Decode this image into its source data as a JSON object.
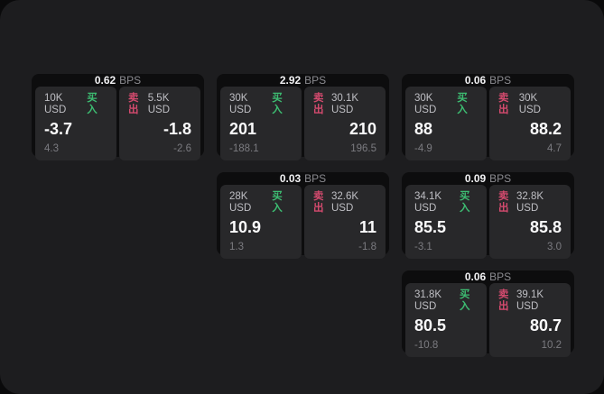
{
  "labels": {
    "bps_unit": "BPS",
    "buy": "买入",
    "sell": "卖出"
  },
  "colors": {
    "outer_background": "#0a0a0b",
    "surface": "#1d1d1f",
    "card_background": "#0d0d0e",
    "panel_background": "#28282a",
    "buy_green": "#3dbd72",
    "sell_red": "#d44a6e",
    "price_text": "#fbfbfc",
    "muted_text": "#7b7b80"
  },
  "cards": [
    {
      "bps": "0.62",
      "buy": {
        "size": "10K USD",
        "price": "-3.7",
        "change": "4.3"
      },
      "sell": {
        "size": "5.5K USD",
        "price": "-1.8",
        "change": "-2.6"
      }
    },
    {
      "bps": "2.92",
      "buy": {
        "size": "30K USD",
        "price": "201",
        "change": "-188.1"
      },
      "sell": {
        "size": "30.1K USD",
        "price": "210",
        "change": "196.5"
      }
    },
    {
      "bps": "0.06",
      "buy": {
        "size": "30K USD",
        "price": "88",
        "change": "-4.9"
      },
      "sell": {
        "size": "30K USD",
        "price": "88.2",
        "change": "4.7"
      }
    },
    {
      "bps": "0.03",
      "buy": {
        "size": "28K USD",
        "price": "10.9",
        "change": "1.3"
      },
      "sell": {
        "size": "32.6K USD",
        "price": "11",
        "change": "-1.8"
      }
    },
    {
      "bps": "0.09",
      "buy": {
        "size": "34.1K USD",
        "price": "85.5",
        "change": "-3.1"
      },
      "sell": {
        "size": "32.8K USD",
        "price": "85.8",
        "change": "3.0"
      }
    },
    {
      "bps": "0.06",
      "buy": {
        "size": "31.8K USD",
        "price": "80.5",
        "change": "-10.8"
      },
      "sell": {
        "size": "39.1K USD",
        "price": "80.7",
        "change": "10.2"
      }
    }
  ]
}
